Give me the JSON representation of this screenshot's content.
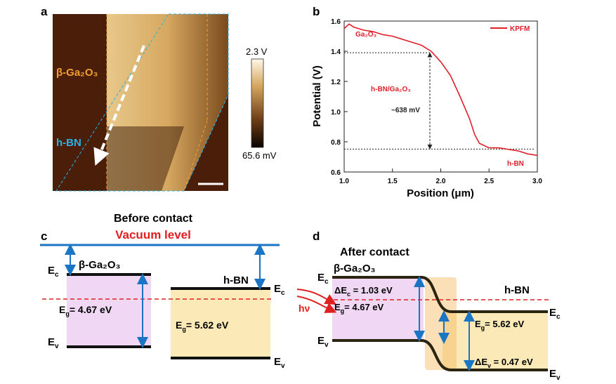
{
  "figure": {
    "panel_a": {
      "label": "a",
      "region_gao": "β-Ga₂O₃",
      "region_hbn": "h-BN",
      "colorbar_max": "2.3 V",
      "colorbar_min": "65.6 mV"
    },
    "panel_c": {
      "label": "c",
      "title": "Before contact",
      "vacuum_level": "Vacuum level",
      "material_left": "β-Ga₂O₃",
      "material_right": "h-BN",
      "left_ec": {
        "main": "E",
        "sub": "c"
      },
      "left_ev": {
        "main": "E",
        "sub": "v"
      },
      "left_eg": {
        "main": "E",
        "sub": "g",
        "rest": "= 4.67 eV"
      },
      "right_ec": {
        "main": "E",
        "sub": "c"
      },
      "right_ev": {
        "main": "E",
        "sub": "v"
      },
      "right_eg": {
        "main": "E",
        "sub": "g",
        "rest": "= 5.62 eV"
      }
    },
    "panel_d": {
      "label": "d",
      "title": "After contact",
      "material_left": "β-Ga₂O₃",
      "material_right": "h-BN",
      "light": "hν",
      "left_ec": {
        "main": "E",
        "sub": "c"
      },
      "left_ev": {
        "main": "E",
        "sub": "v"
      },
      "left_eg": {
        "main": "E",
        "sub": "g",
        "rest": "= 4.67 eV"
      },
      "delta_ec": {
        "main": "ΔE",
        "sub": "c",
        "rest": " = 1.03 eV"
      },
      "right_ec": {
        "main": "E",
        "sub": "c"
      },
      "right_ev": {
        "main": "E",
        "sub": "v"
      },
      "right_eg": {
        "main": "E",
        "sub": "g",
        "rest": "= 5.62 eV"
      },
      "delta_ev": {
        "main": "ΔE",
        "sub": "v",
        "rest": " = 0.47 eV"
      }
    }
  },
  "chart_data": {
    "type": "line",
    "label": "b",
    "xlabel": "Position (μm)",
    "ylabel": "Potential (V)",
    "xlim": [
      1.0,
      3.0
    ],
    "xticks": [
      {
        "value": 1.0,
        "label": "1.0"
      },
      1.5,
      {
        "value": 2.0,
        "label": "2.0"
      },
      2.5,
      {
        "value": 3.0,
        "label": "3.0"
      }
    ],
    "ylim": [
      0.6,
      1.6
    ],
    "yticks": [
      0.6,
      0.8,
      {
        "value": 1.0,
        "label": "1.0"
      },
      1.2,
      1.4,
      1.6
    ],
    "series": [
      {
        "name": "KPFM",
        "color": "#e0202a",
        "x": [
          1.0,
          1.05,
          1.1,
          1.2,
          1.3,
          1.4,
          1.5,
          1.6,
          1.7,
          1.8,
          1.9,
          2.0,
          2.1,
          2.2,
          2.3,
          2.35,
          2.4,
          2.5,
          2.6,
          2.7,
          2.8,
          2.9,
          3.0
        ],
        "values": [
          1.55,
          1.58,
          1.56,
          1.54,
          1.53,
          1.51,
          1.5,
          1.48,
          1.46,
          1.44,
          1.4,
          1.33,
          1.24,
          1.1,
          0.95,
          0.85,
          0.79,
          0.76,
          0.76,
          0.75,
          0.74,
          0.72,
          0.71
        ]
      }
    ],
    "ref_levels": [
      1.39,
      0.752
    ],
    "annotations": [
      "Ga₂O₃",
      "h-BN/Ga₂O₃",
      "~638 mV",
      "h-BN"
    ]
  }
}
